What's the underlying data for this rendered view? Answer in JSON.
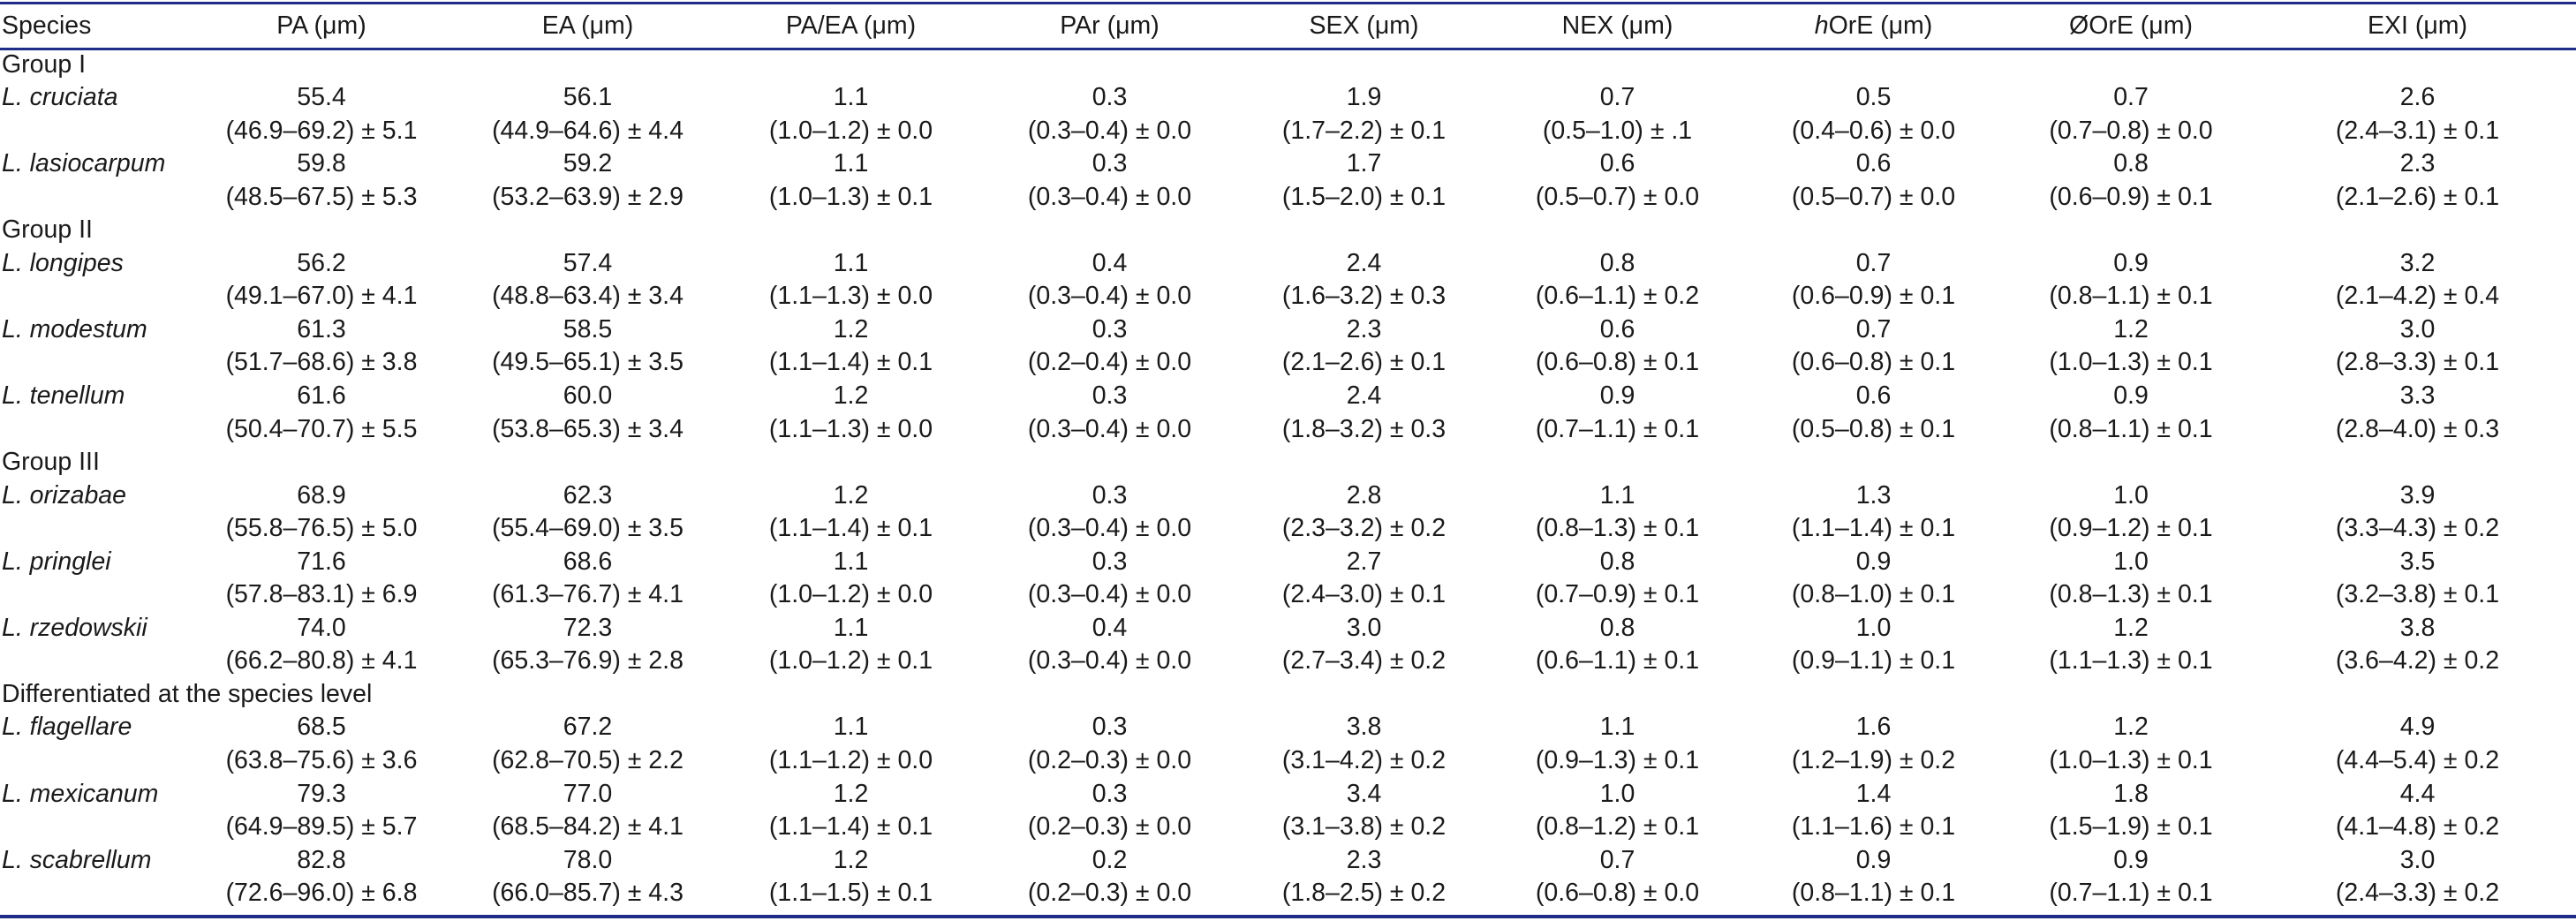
{
  "headers": {
    "species": "Species",
    "pa": "PA (μm)",
    "ea": "EA (μm)",
    "pa_ea": "PA/EA (μm)",
    "par": "PAr (μm)",
    "sex": "SEX (μm)",
    "nex": "NEX (μm)",
    "hore_prefix": "h",
    "hore_rest": "OrE (μm)",
    "dore": "ØOrE (μm)",
    "exi": "EXI (μm)"
  },
  "groups": [
    {
      "label": "Group I",
      "species": [
        {
          "name": "L. cruciata",
          "means": [
            "55.4",
            "56.1",
            "1.1",
            "0.3",
            "1.9",
            "0.7",
            "0.5",
            "0.7",
            "2.6"
          ],
          "ranges": [
            "(46.9–69.2) ± 5.1",
            "(44.9–64.6) ± 4.4",
            "(1.0–1.2) ± 0.0",
            "(0.3–0.4) ± 0.0",
            "(1.7–2.2) ± 0.1",
            "(0.5–1.0) ± .1",
            "(0.4–0.6) ± 0.0",
            "(0.7–0.8) ± 0.0",
            "(2.4–3.1) ± 0.1"
          ]
        },
        {
          "name": "L. lasiocarpum",
          "means": [
            "59.8",
            "59.2",
            "1.1",
            "0.3",
            "1.7",
            "0.6",
            "0.6",
            "0.8",
            "2.3"
          ],
          "ranges": [
            "(48.5–67.5) ± 5.3",
            "(53.2–63.9) ± 2.9",
            "(1.0–1.3) ± 0.1",
            "(0.3–0.4) ± 0.0",
            "(1.5–2.0) ± 0.1",
            "(0.5–0.7) ± 0.0",
            "(0.5–0.7) ± 0.0",
            "(0.6–0.9) ± 0.1",
            "(2.1–2.6) ± 0.1"
          ]
        }
      ]
    },
    {
      "label": "Group II",
      "species": [
        {
          "name": "L. longipes",
          "means": [
            "56.2",
            "57.4",
            "1.1",
            "0.4",
            "2.4",
            "0.8",
            "0.7",
            "0.9",
            "3.2"
          ],
          "ranges": [
            "(49.1–67.0) ± 4.1",
            "(48.8–63.4) ± 3.4",
            "(1.1–1.3) ± 0.0",
            "(0.3–0.4) ± 0.0",
            "(1.6–3.2) ± 0.3",
            "(0.6–1.1) ± 0.2",
            "(0.6–0.9) ± 0.1",
            "(0.8–1.1) ± 0.1",
            "(2.1–4.2) ± 0.4"
          ]
        },
        {
          "name": "L. modestum",
          "means": [
            "61.3",
            "58.5",
            "1.2",
            "0.3",
            "2.3",
            "0.6",
            "0.7",
            "1.2",
            "3.0"
          ],
          "ranges": [
            "(51.7–68.6) ± 3.8",
            "(49.5–65.1) ± 3.5",
            "(1.1–1.4) ± 0.1",
            "(0.2–0.4) ± 0.0",
            "(2.1–2.6) ± 0.1",
            "(0.6–0.8) ± 0.1",
            "(0.6–0.8) ± 0.1",
            "(1.0–1.3) ± 0.1",
            "(2.8–3.3) ± 0.1"
          ]
        },
        {
          "name": "L. tenellum",
          "means": [
            "61.6",
            "60.0",
            "1.2",
            "0.3",
            "2.4",
            "0.9",
            "0.6",
            "0.9",
            "3.3"
          ],
          "ranges": [
            "(50.4–70.7) ± 5.5",
            "(53.8–65.3) ± 3.4",
            "(1.1–1.3) ± 0.0",
            "(0.3–0.4) ± 0.0",
            "(1.8–3.2) ± 0.3",
            "(0.7–1.1) ± 0.1",
            "(0.5–0.8) ± 0.1",
            "(0.8–1.1) ± 0.1",
            "(2.8–4.0) ± 0.3"
          ]
        }
      ]
    },
    {
      "label": "Group III",
      "species": [
        {
          "name": "L. orizabae",
          "means": [
            "68.9",
            "62.3",
            "1.2",
            "0.3",
            "2.8",
            "1.1",
            "1.3",
            "1.0",
            "3.9"
          ],
          "ranges": [
            "(55.8–76.5) ± 5.0",
            "(55.4–69.0) ± 3.5",
            "(1.1–1.4) ± 0.1",
            "(0.3–0.4) ± 0.0",
            "(2.3–3.2) ± 0.2",
            "(0.8–1.3) ± 0.1",
            "(1.1–1.4) ± 0.1",
            "(0.9–1.2) ± 0.1",
            "(3.3–4.3) ± 0.2"
          ]
        },
        {
          "name": "L. pringlei",
          "means": [
            "71.6",
            "68.6",
            "1.1",
            "0.3",
            "2.7",
            "0.8",
            "0.9",
            "1.0",
            "3.5"
          ],
          "ranges": [
            "(57.8–83.1) ± 6.9",
            "(61.3–76.7) ± 4.1",
            "(1.0–1.2) ± 0.0",
            "(0.3–0.4) ± 0.0",
            "(2.4–3.0) ± 0.1",
            "(0.7–0.9) ± 0.1",
            "(0.8–1.0) ± 0.1",
            "(0.8–1.3) ± 0.1",
            "(3.2–3.8) ± 0.1"
          ]
        },
        {
          "name": "L. rzedowskii",
          "means": [
            "74.0",
            "72.3",
            "1.1",
            "0.4",
            "3.0",
            "0.8",
            "1.0",
            "1.2",
            "3.8"
          ],
          "ranges": [
            "(66.2–80.8) ± 4.1",
            "(65.3–76.9) ± 2.8",
            "(1.0–1.2) ± 0.1",
            "(0.3–0.4) ± 0.0",
            "(2.7–3.4) ± 0.2",
            "(0.6–1.1) ± 0.1",
            "(0.9–1.1) ± 0.1",
            "(1.1–1.3) ± 0.1",
            "(3.6–4.2) ± 0.2"
          ]
        }
      ]
    },
    {
      "label": "Differentiated at the species level",
      "species": [
        {
          "name": "L. flagellare",
          "means": [
            "68.5",
            "67.2",
            "1.1",
            "0.3",
            "3.8",
            "1.1",
            "1.6",
            "1.2",
            "4.9"
          ],
          "ranges": [
            "(63.8–75.6) ± 3.6",
            "(62.8–70.5) ± 2.2",
            "(1.1–1.2) ± 0.0",
            "(0.2–0.3) ± 0.0",
            "(3.1–4.2) ± 0.2",
            "(0.9–1.3) ± 0.1",
            "(1.2–1.9) ± 0.2",
            "(1.0–1.3) ± 0.1",
            "(4.4–5.4) ± 0.2"
          ]
        },
        {
          "name": "L. mexicanum",
          "means": [
            "79.3",
            "77.0",
            "1.2",
            "0.3",
            "3.4",
            "1.0",
            "1.4",
            "1.8",
            "4.4"
          ],
          "ranges": [
            "(64.9–89.5) ± 5.7",
            "(68.5–84.2) ± 4.1",
            "(1.1–1.4) ± 0.1",
            "(0.2–0.3) ± 0.0",
            "(3.1–3.8) ± 0.2",
            "(0.8–1.2) ± 0.1",
            "(1.1–1.6) ± 0.1",
            "(1.5–1.9) ± 0.1",
            "(4.1–4.8) ± 0.2"
          ]
        },
        {
          "name": "L. scabrellum",
          "means": [
            "82.8",
            "78.0",
            "1.2",
            "0.2",
            "2.3",
            "0.7",
            "0.9",
            "0.9",
            "3.0"
          ],
          "ranges": [
            "(72.6–96.0) ± 6.8",
            "(66.0–85.7) ± 4.3",
            "(1.1–1.5) ± 0.1",
            "(0.2–0.3) ± 0.0",
            "(1.8–2.5) ± 0.2",
            "(0.6–0.8) ± 0.0",
            "(0.8–1.1) ± 0.1",
            "(0.7–1.1) ± 0.1",
            "(2.4–3.3) ± 0.2"
          ]
        }
      ]
    }
  ]
}
